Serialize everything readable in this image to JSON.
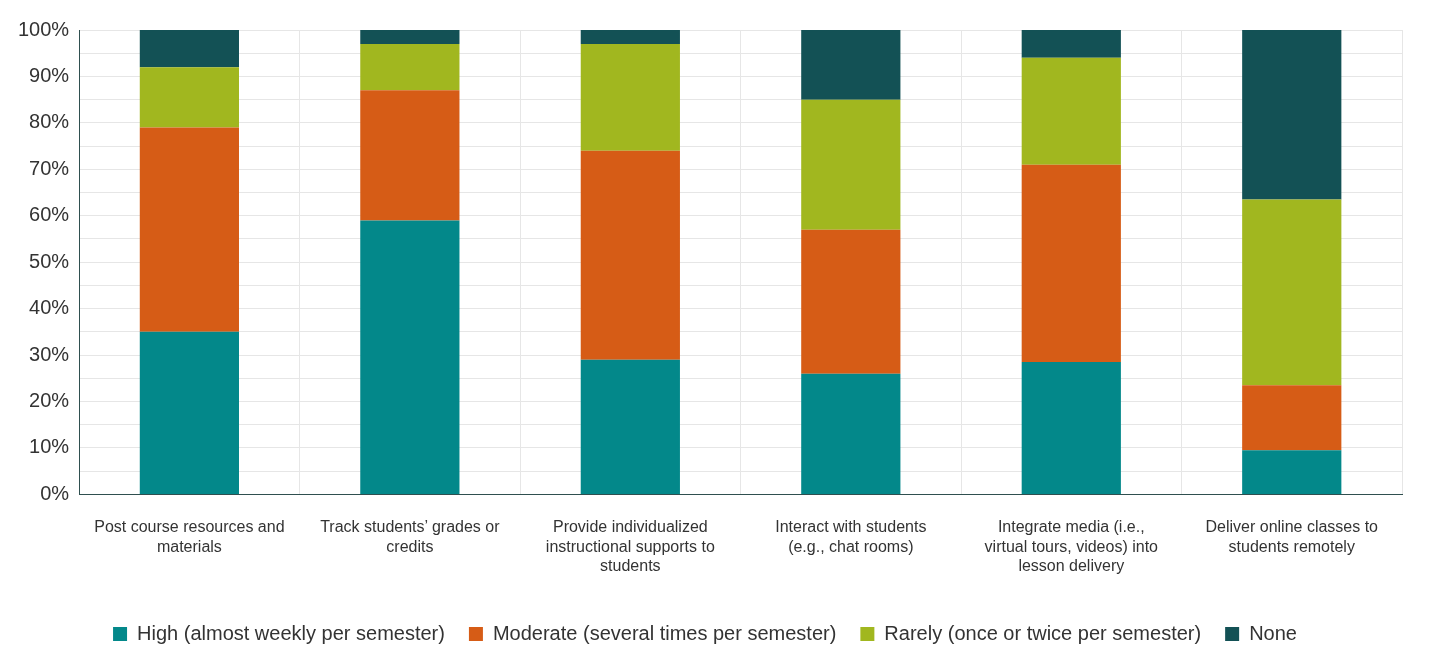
{
  "chart_data": {
    "type": "bar",
    "stacked": true,
    "categories": [
      "Post course resources and materials",
      "Track students’ grades or credits",
      "Provide individualized instructional supports to students",
      "Interact with students (e.g., chat rooms)",
      "Integrate media (i.e., virtual tours, videos) into lesson delivery",
      "Deliver online classes to students remotely"
    ],
    "series": [
      {
        "name": "High (almost weekly per semester)",
        "color": "#03888a",
        "values": [
          35,
          59,
          29,
          26,
          28.5,
          9.5
        ]
      },
      {
        "name": "Moderate (several times per semester)",
        "color": "#d65c16",
        "values": [
          44,
          28,
          45,
          31,
          42.5,
          14
        ]
      },
      {
        "name": "Rarely (once or twice per semester)",
        "color": "#a1b71f",
        "values": [
          13,
          10,
          23,
          28,
          23,
          40
        ]
      },
      {
        "name": "None",
        "color": "#135155",
        "values": [
          8,
          3,
          3,
          15,
          6,
          36.5
        ]
      }
    ],
    "ylim": [
      0,
      100
    ],
    "yticks": [
      {
        "value": 0,
        "label": "0%"
      },
      {
        "value": 5,
        "label": null
      },
      {
        "value": 10,
        "label": "10%"
      },
      {
        "value": 15,
        "label": null
      },
      {
        "value": 20,
        "label": "20%"
      },
      {
        "value": 25,
        "label": null
      },
      {
        "value": 30,
        "label": "30%"
      },
      {
        "value": 35,
        "label": null
      },
      {
        "value": 40,
        "label": "40%"
      },
      {
        "value": 45,
        "label": null
      },
      {
        "value": 50,
        "label": "50%"
      },
      {
        "value": 55,
        "label": null
      },
      {
        "value": 60,
        "label": "60%"
      },
      {
        "value": 65,
        "label": null
      },
      {
        "value": 70,
        "label": "70%"
      },
      {
        "value": 75,
        "label": null
      },
      {
        "value": 80,
        "label": "80%"
      },
      {
        "value": 85,
        "label": null
      },
      {
        "value": 90,
        "label": "90%"
      },
      {
        "value": 95,
        "label": null
      },
      {
        "value": 100,
        "label": "100%"
      }
    ],
    "grid": true,
    "legend": "bottom"
  }
}
